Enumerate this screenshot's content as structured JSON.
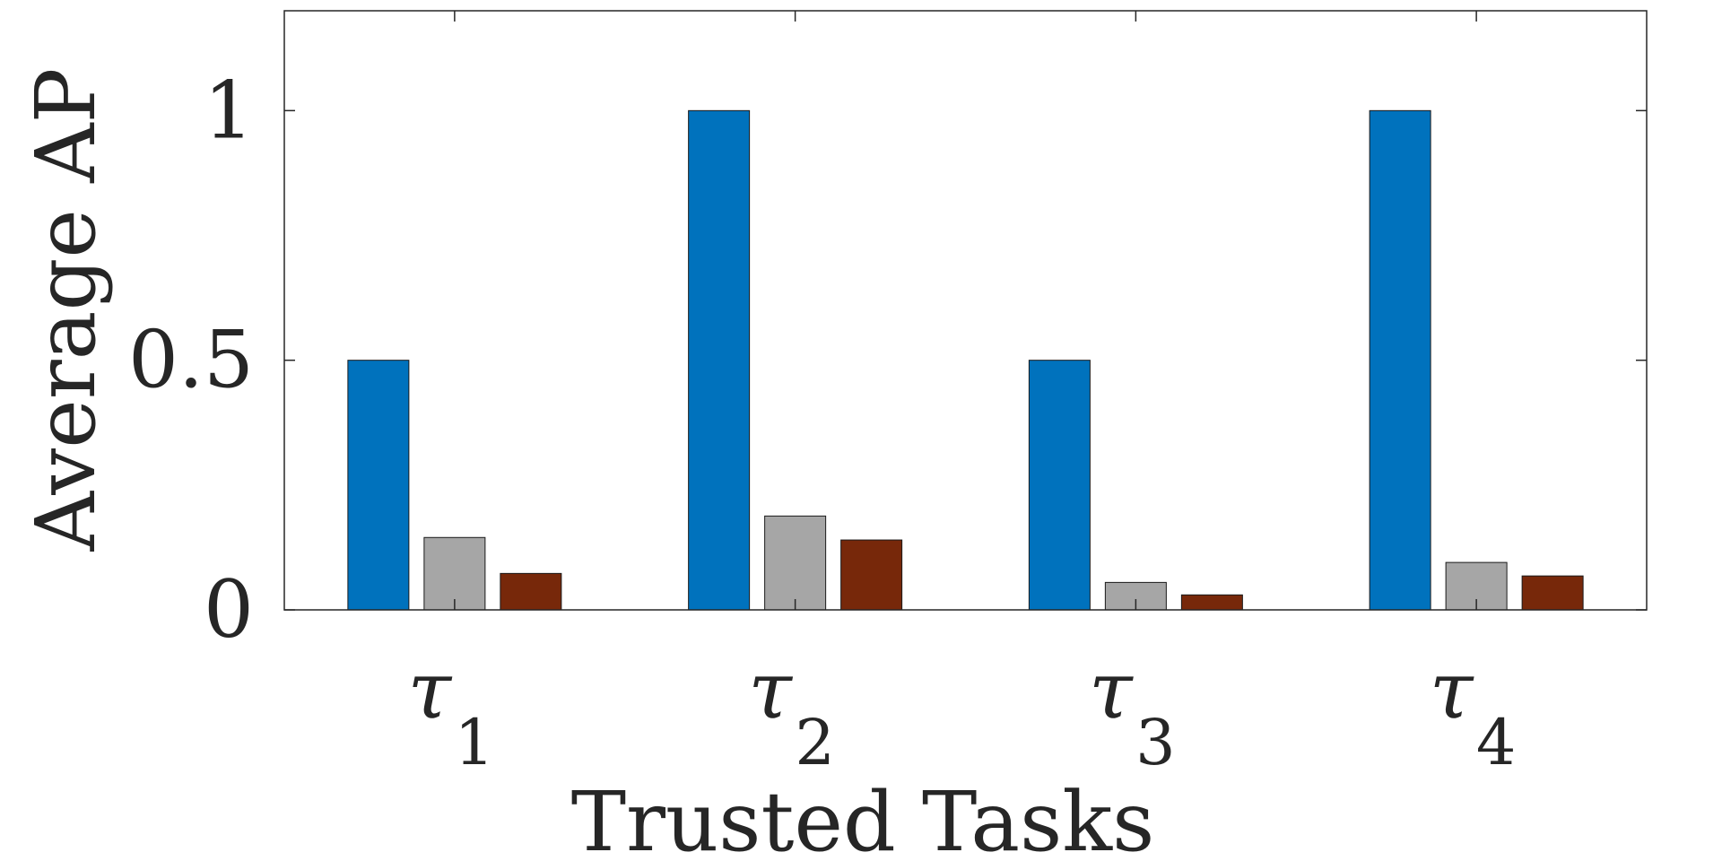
{
  "chart_data": {
    "type": "bar",
    "xlabel": "Trusted Tasks",
    "ylabel": "Average AP",
    "categories": [
      {
        "symbol": "τ",
        "subscript": "1"
      },
      {
        "symbol": "τ",
        "subscript": "2"
      },
      {
        "symbol": "τ",
        "subscript": "3"
      },
      {
        "symbol": "τ",
        "subscript": "4"
      }
    ],
    "ylim": [
      0,
      1.2
    ],
    "yticks": [
      0,
      0.5,
      1
    ],
    "ytick_labels": [
      "0",
      "0.5",
      "1"
    ],
    "grid": false,
    "legend": false,
    "series": [
      {
        "color": "#0072BD",
        "values": [
          0.5,
          1.0,
          0.5,
          1.0
        ]
      },
      {
        "color": "#A6A6A6",
        "values": [
          0.145,
          0.188,
          0.055,
          0.095
        ]
      },
      {
        "color": "#77280A",
        "values": [
          0.073,
          0.14,
          0.03,
          0.068
        ]
      }
    ]
  }
}
